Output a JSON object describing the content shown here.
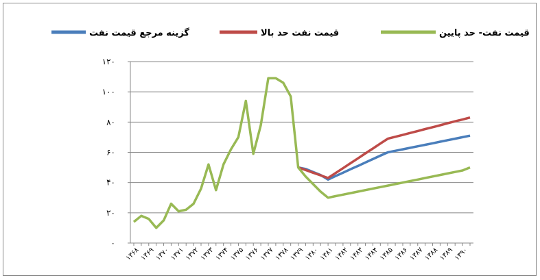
{
  "chart_data": {
    "type": "line",
    "categories": [
      "۱۳۶۸",
      null,
      "۱۳۶۹",
      null,
      "۱۳۷۰",
      null,
      "۱۳۷۱",
      null,
      "۱۳۷۲",
      null,
      "۱۳۷۳",
      null,
      "۱۳۷۴",
      null,
      "۱۳۷۵",
      null,
      "۱۳۷۶",
      null,
      "۱۳۷۷",
      null,
      "۱۳۷۸",
      null,
      "۱۳۷۹",
      null,
      "۱۳۸۰",
      null,
      "۱۳۸۱",
      null,
      "۱۳۸۲",
      null,
      "۱۳۸۳",
      null,
      "۱۳۸۴",
      null,
      "۱۳۸۵",
      null,
      "۱۳۸۶",
      null,
      "۱۳۸۷",
      null,
      "۱۳۸۸",
      null,
      "۱۳۸۹",
      null,
      "۱۳۹۰",
      null
    ],
    "series": [
      {
        "name": "گزینه مرجع قیمت نفت",
        "color": "#4a7ebb",
        "values": [
          null,
          null,
          null,
          null,
          null,
          null,
          null,
          null,
          null,
          null,
          null,
          null,
          null,
          null,
          null,
          null,
          null,
          null,
          null,
          null,
          null,
          null,
          50,
          49,
          47,
          45,
          42,
          44.3,
          46.5,
          48.8,
          51,
          53.3,
          55.5,
          57.8,
          60,
          61,
          62,
          63,
          64,
          65,
          66,
          67,
          68,
          69,
          70,
          71
        ]
      },
      {
        "name": "قیمت نفت حد بالا",
        "color": "#be4b48",
        "values": [
          null,
          null,
          null,
          null,
          null,
          null,
          null,
          null,
          null,
          null,
          null,
          null,
          null,
          null,
          null,
          null,
          null,
          null,
          null,
          null,
          null,
          null,
          50,
          48.3,
          46.5,
          44.8,
          43,
          46.3,
          49.5,
          52.8,
          56,
          59.3,
          62.5,
          65.8,
          69,
          70.3,
          71.5,
          72.8,
          74.1,
          75.4,
          76.6,
          77.9,
          79.2,
          80.5,
          81.7,
          83
        ]
      },
      {
        "name": "قیمت نفت- حد پایین",
        "color": "#98b954",
        "values": [
          14,
          18,
          16,
          10,
          15,
          26,
          21,
          22,
          26,
          36,
          52,
          35,
          52,
          62,
          70,
          94,
          59,
          78,
          109,
          109,
          106,
          97,
          50,
          44,
          39,
          34,
          30,
          31,
          32,
          33,
          34,
          35,
          36,
          37,
          38,
          39,
          40,
          41,
          42,
          43,
          44,
          45,
          46,
          47,
          48,
          50
        ]
      }
    ],
    "ylim": [
      0,
      120
    ],
    "yticks": [
      {
        "value": 0,
        "label": "۰"
      },
      {
        "value": 20,
        "label": "۲۰"
      },
      {
        "value": 40,
        "label": "۴۰"
      },
      {
        "value": 60,
        "label": "۶۰"
      },
      {
        "value": 80,
        "label": "۸۰"
      },
      {
        "value": 100,
        "label": "۱۰۰"
      },
      {
        "value": 120,
        "label": "۱۲۰"
      }
    ],
    "grid": true,
    "legend": "top"
  }
}
